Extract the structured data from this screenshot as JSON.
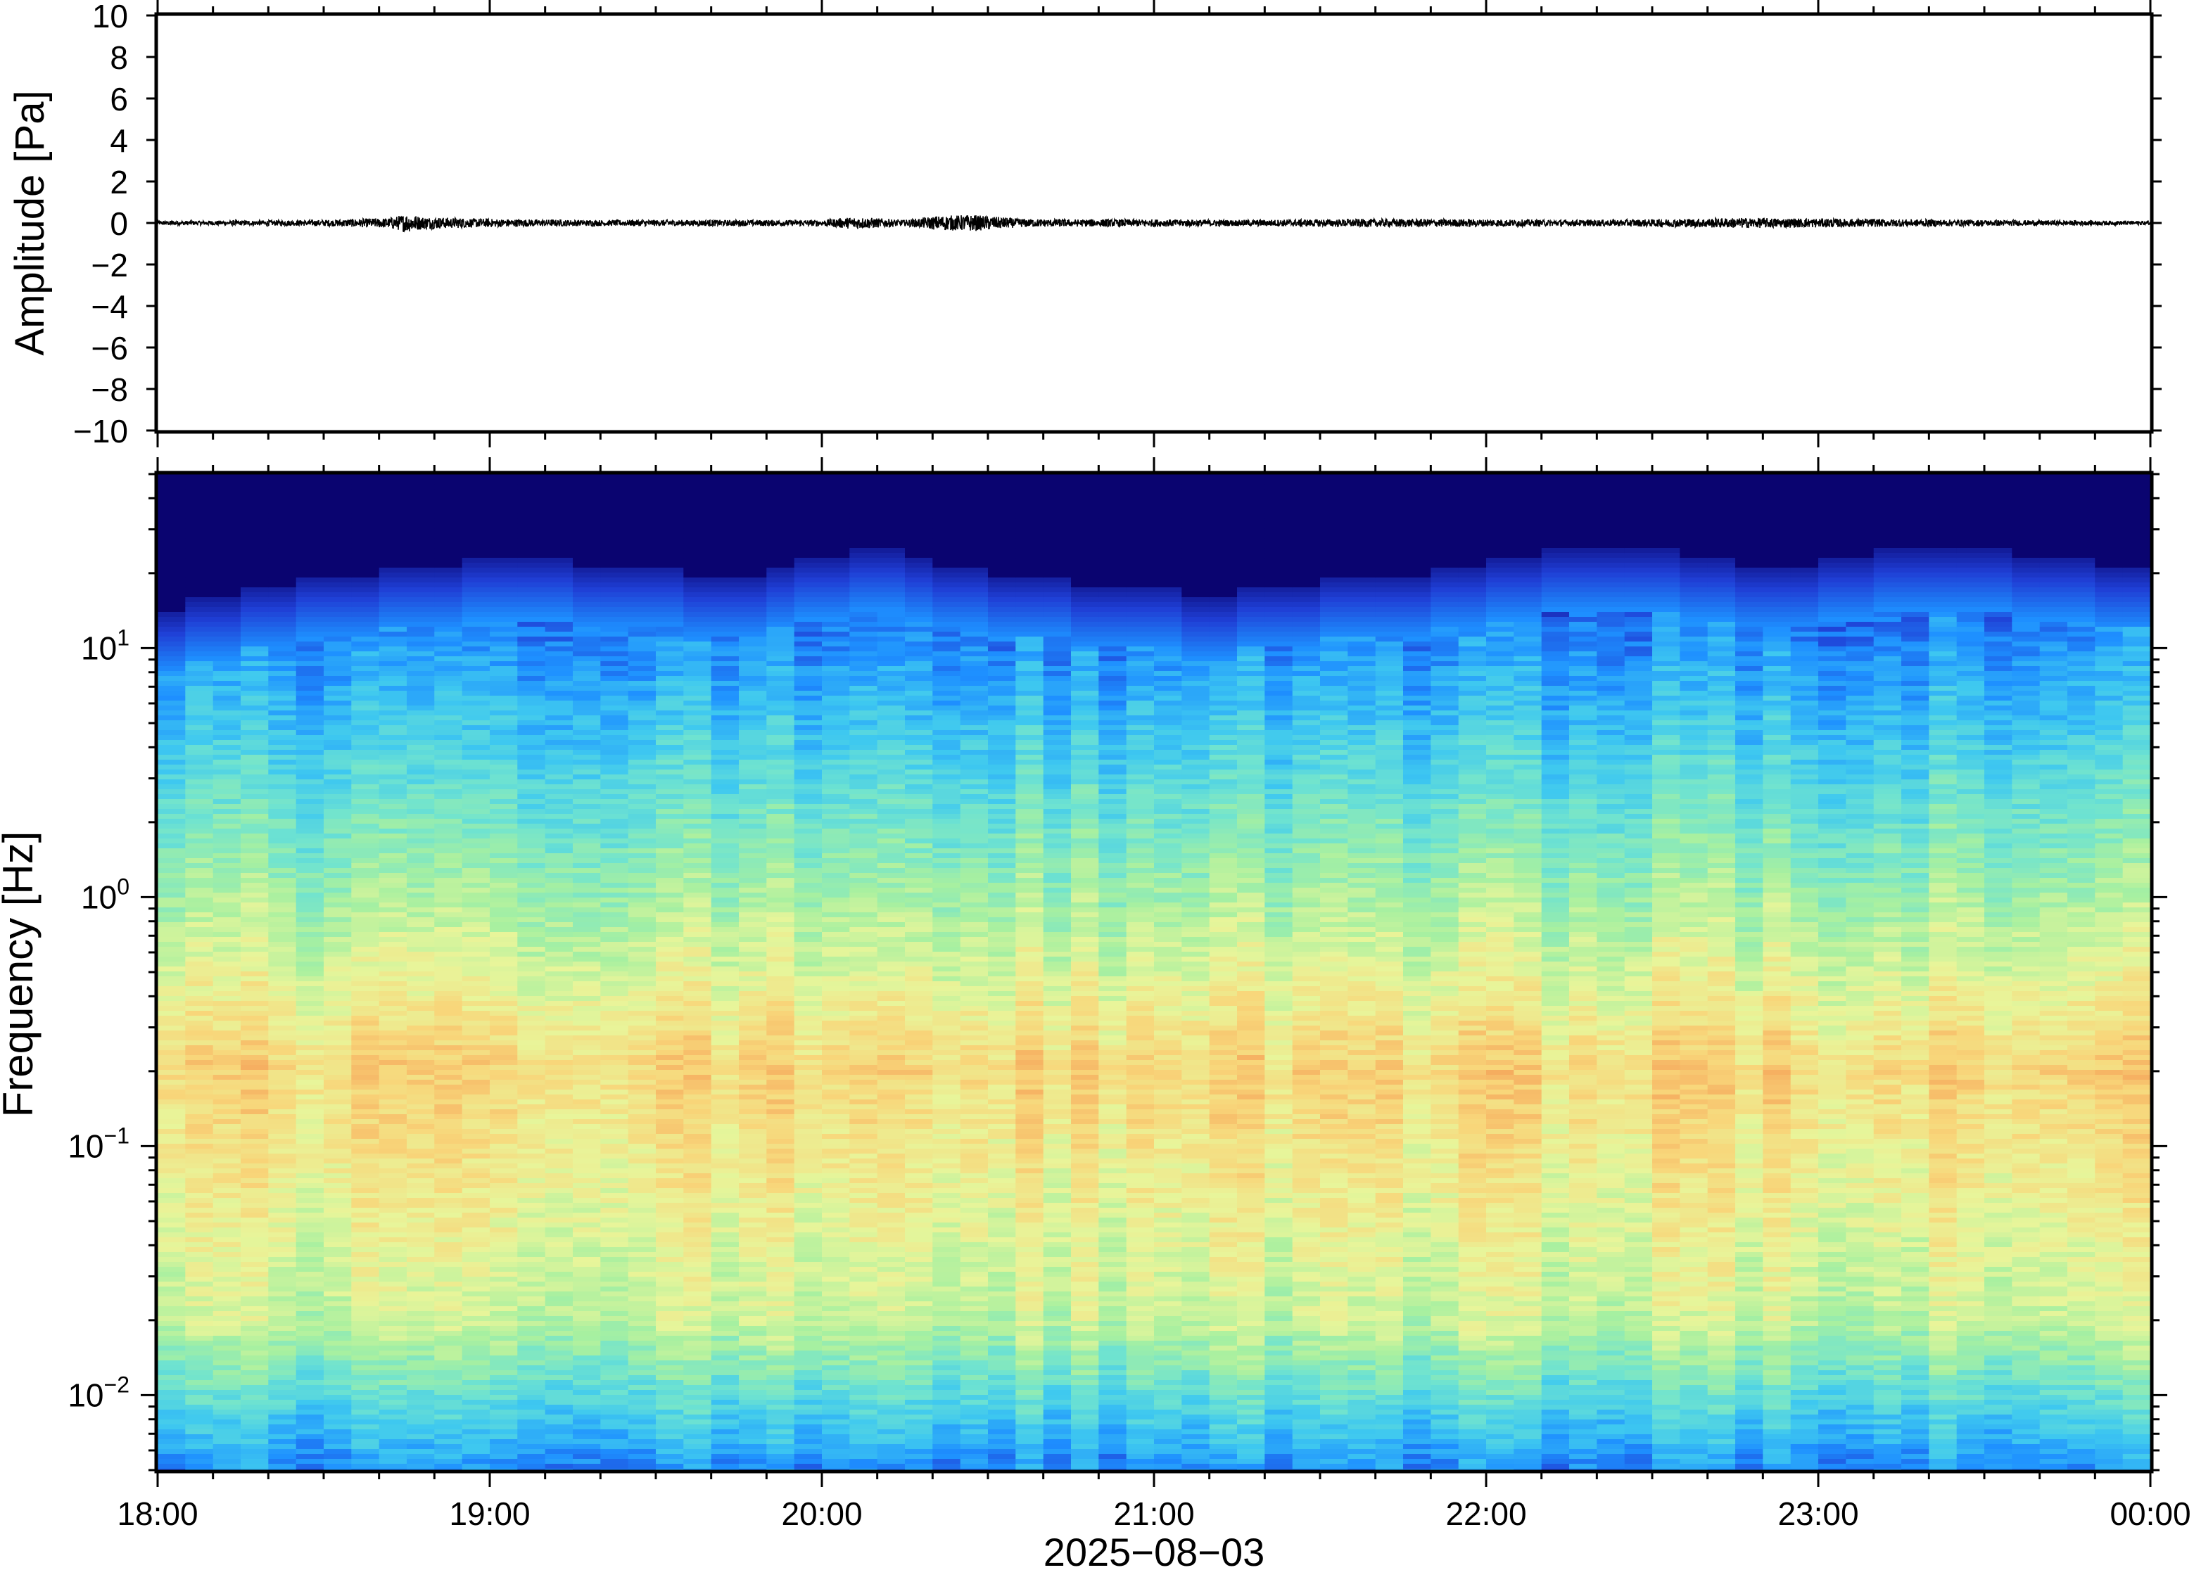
{
  "chart_data": [
    {
      "type": "line",
      "panel": "waveform",
      "ylabel": "Amplitude [Pa]",
      "ylim": [
        -10,
        10
      ],
      "yticks": [
        10,
        8,
        6,
        4,
        2,
        0,
        -2,
        -4,
        -6,
        -8,
        -10
      ],
      "ytick_labels": [
        "10",
        "8",
        "6",
        "4",
        "2",
        "0",
        "−2",
        "−4",
        "−6",
        "−8",
        "−10"
      ],
      "xlim_hours": [
        18,
        24
      ],
      "series": [
        {
          "color": "#000000",
          "envelope_x_hours": [
            18.0,
            18.25,
            18.5,
            18.7,
            18.75,
            18.8,
            19.0,
            19.25,
            19.5,
            19.75,
            20.0,
            20.1,
            20.25,
            20.35,
            20.45,
            20.6,
            20.75,
            21.0,
            21.25,
            21.5,
            21.75,
            22.0,
            22.25,
            22.5,
            22.75,
            23.0,
            23.25,
            23.5,
            23.75,
            24.0
          ],
          "envelope_amplitude_pa": [
            0.1,
            0.12,
            0.15,
            0.25,
            0.45,
            0.3,
            0.2,
            0.15,
            0.15,
            0.15,
            0.15,
            0.3,
            0.15,
            0.35,
            0.4,
            0.2,
            0.18,
            0.18,
            0.15,
            0.18,
            0.2,
            0.18,
            0.15,
            0.18,
            0.25,
            0.22,
            0.18,
            0.15,
            0.12,
            0.1
          ]
        }
      ]
    },
    {
      "type": "heatmap",
      "panel": "spectrogram",
      "ylabel": "Frequency [Hz]",
      "xlabel": "2025−08−03",
      "yscale": "log",
      "ylim_hz": [
        0.005,
        50
      ],
      "yticks_hz": [
        0.01,
        0.1,
        1,
        10
      ],
      "ytick_labels": [
        {
          "base": "10",
          "exp": "−2"
        },
        {
          "base": "10",
          "exp": "−1"
        },
        {
          "base": "10",
          "exp": "0"
        },
        {
          "base": "10",
          "exp": "1"
        }
      ],
      "xlim_hours": [
        18,
        24
      ],
      "xticks_hours": [
        18,
        19,
        20,
        21,
        22,
        23,
        24
      ],
      "xtick_labels": [
        "18:00",
        "19:00",
        "20:00",
        "21:00",
        "22:00",
        "23:00",
        "00:00"
      ],
      "colormap": [
        "#0a0470",
        "#1f3fd6",
        "#1e90ff",
        "#3ec8f0",
        "#6fe3d0",
        "#a8f0a0",
        "#e8f59a",
        "#f8d67a",
        "#f5a55a"
      ],
      "noise_ceiling_hz_by_column": [
        8,
        9,
        9,
        10,
        10,
        11,
        11,
        11,
        12,
        12,
        12,
        13,
        13,
        13,
        13,
        12,
        12,
        12,
        12,
        11,
        11,
        11,
        12,
        13,
        13,
        14,
        14,
        13,
        12,
        12,
        11,
        11,
        11,
        10,
        10,
        10,
        10,
        9,
        9,
        10,
        10,
        10,
        11,
        11,
        11,
        11,
        12,
        12,
        13,
        13,
        14,
        14,
        14,
        14,
        14,
        13,
        13,
        12,
        12,
        12,
        13,
        13,
        14,
        14,
        14,
        14,
        14,
        13,
        13,
        13,
        12,
        12
      ],
      "microbarom_peak_hz": 0.19
    }
  ]
}
